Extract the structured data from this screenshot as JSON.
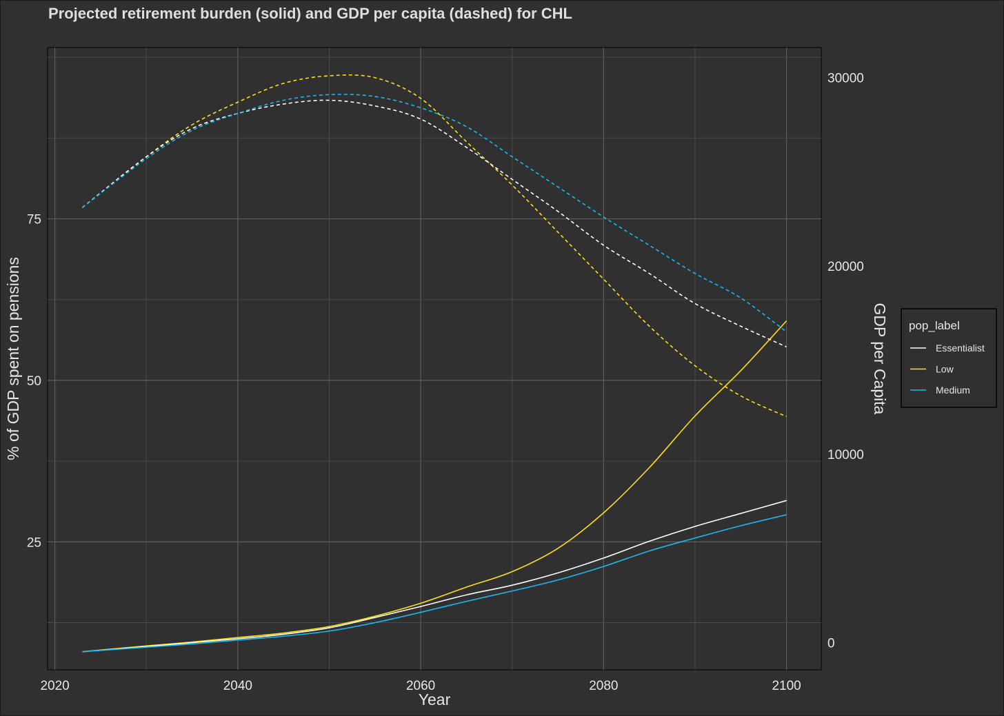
{
  "chart_data": {
    "type": "line",
    "title": "Projected retirement burden (solid) and GDP per capita (dashed) for CHL",
    "xlabel": "Year",
    "ylabel": "% of GDP spent on pensions",
    "y2label": "GDP per Capita",
    "xlim": [
      2019.2,
      2103.8
    ],
    "ylim": [
      5.2,
      101.5
    ],
    "y2lim": [
      -1450,
      31600
    ],
    "x_ticks": [
      2020,
      2040,
      2060,
      2080,
      2100
    ],
    "y_ticks": [
      25,
      50,
      75
    ],
    "y2_ticks": [
      0,
      10000,
      20000,
      30000
    ],
    "legend": {
      "title": "pop_label",
      "position": "right",
      "entries": [
        {
          "label": "Essentialist",
          "color": "#ffffff"
        },
        {
          "label": "Low",
          "color": "#ffe014"
        },
        {
          "label": "Medium",
          "color": "#1ab8ee"
        }
      ]
    },
    "x": [
      2023,
      2030,
      2035,
      2040,
      2045,
      2050,
      2055,
      2060,
      2065,
      2070,
      2075,
      2080,
      2085,
      2090,
      2095,
      2100
    ],
    "series": [
      {
        "name": "Essentialist",
        "kind": "pension_pct",
        "axis": "left",
        "color": "#ffffff",
        "values": [
          8.0,
          8.8,
          9.4,
          10.0,
          10.7,
          11.7,
          13.3,
          15.0,
          16.8,
          18.3,
          20.2,
          22.5,
          25.1,
          27.4,
          29.4,
          31.4
        ]
      },
      {
        "name": "Low",
        "kind": "pension_pct",
        "axis": "left",
        "color": "#ffe014",
        "values": [
          8.0,
          8.9,
          9.5,
          10.2,
          10.9,
          11.9,
          13.5,
          15.5,
          18.0,
          20.4,
          24.0,
          29.5,
          36.5,
          44.5,
          51.5,
          59.2
        ]
      },
      {
        "name": "Medium",
        "kind": "pension_pct",
        "axis": "left",
        "color": "#1ab8ee",
        "values": [
          8.0,
          8.7,
          9.2,
          9.8,
          10.4,
          11.2,
          12.5,
          14.1,
          15.8,
          17.4,
          19.1,
          21.2,
          23.6,
          25.6,
          27.5,
          29.2
        ]
      },
      {
        "name": "Essentialist",
        "kind": "gdp_per_capita",
        "axis": "right",
        "color": "#ffffff",
        "values": [
          23100,
          25800,
          27300,
          28100,
          28600,
          28800,
          28500,
          27800,
          26300,
          24600,
          22900,
          21100,
          19600,
          18000,
          16800,
          15700
        ]
      },
      {
        "name": "Low",
        "kind": "gdp_per_capita",
        "axis": "right",
        "color": "#ffe014",
        "values": [
          23100,
          25800,
          27500,
          28700,
          29700,
          30100,
          30000,
          28900,
          26600,
          24300,
          21800,
          19300,
          16800,
          14700,
          13100,
          12000
        ]
      },
      {
        "name": "Medium",
        "kind": "gdp_per_capita",
        "axis": "right",
        "color": "#1ab8ee",
        "values": [
          23100,
          25700,
          27200,
          28100,
          28800,
          29100,
          29000,
          28400,
          27400,
          25800,
          24200,
          22600,
          21100,
          19600,
          18300,
          16500
        ]
      }
    ]
  }
}
